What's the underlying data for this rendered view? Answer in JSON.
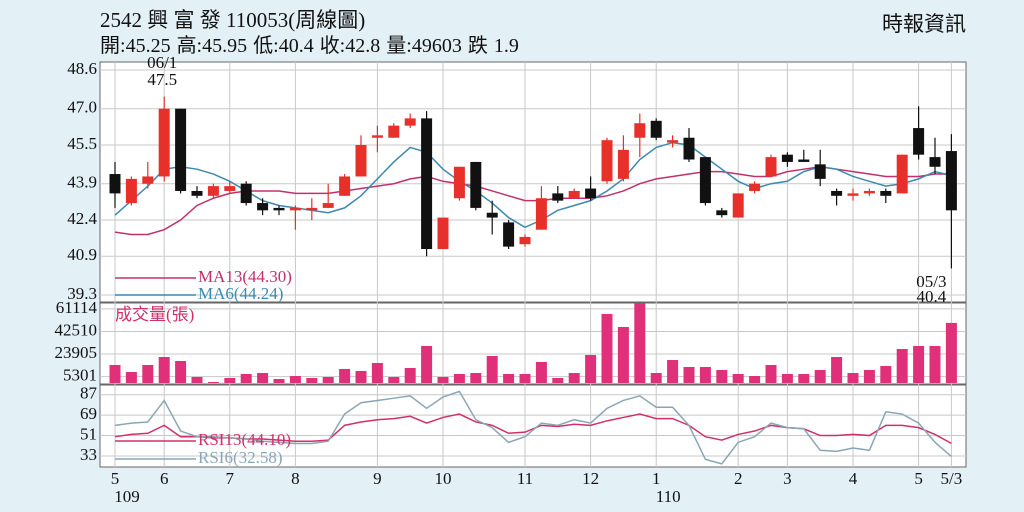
{
  "header": {
    "title": "2542  興 富 發 110053(周線圖)",
    "source": "時報資訊",
    "summary": [
      {
        "label": "開:",
        "value": 45.25
      },
      {
        "label": "高:",
        "value": 45.95
      },
      {
        "label": "低:",
        "value": 40.4
      },
      {
        "label": "收:",
        "value": 42.8
      },
      {
        "label": "量:",
        "value": 49603
      },
      {
        "label": "跌",
        "value": 1.9
      }
    ]
  },
  "year_labels": [
    "109",
    "110"
  ],
  "chart_data": [
    {
      "type": "candlestick",
      "up_color": "#e8302a",
      "down_color": "#111111",
      "categories": [
        "5",
        null,
        null,
        "6",
        null,
        null,
        null,
        "7",
        null,
        null,
        null,
        "8",
        null,
        null,
        null,
        null,
        "9",
        null,
        null,
        null,
        "10",
        null,
        null,
        null,
        null,
        "11",
        null,
        null,
        null,
        "12",
        null,
        null,
        null,
        "1",
        null,
        null,
        null,
        null,
        "2",
        null,
        null,
        "3",
        null,
        null,
        null,
        "4",
        null,
        null,
        null,
        "5",
        null,
        "5/3"
      ],
      "open": [
        44.3,
        43.1,
        43.9,
        44.2,
        47.0,
        43.6,
        43.4,
        43.6,
        43.9,
        43.1,
        42.9,
        42.8,
        42.8,
        42.9,
        43.4,
        44.2,
        45.8,
        45.8,
        46.3,
        46.6,
        41.2,
        43.3,
        44.8,
        42.7,
        42.3,
        41.4,
        42.0,
        43.5,
        43.3,
        43.7,
        44.0,
        44.1,
        45.8,
        46.5,
        45.6,
        45.8,
        45.0,
        42.8,
        42.5,
        43.6,
        44.2,
        45.1,
        44.9,
        44.7,
        43.6,
        43.4,
        43.5,
        43.6,
        43.5,
        46.2,
        45.0,
        45.25
      ],
      "high": [
        44.8,
        44.2,
        44.8,
        47.5,
        47.0,
        43.8,
        43.9,
        44.0,
        44.0,
        43.3,
        43.0,
        43.0,
        43.3,
        43.9,
        44.3,
        45.9,
        46.3,
        46.4,
        46.8,
        46.9,
        42.5,
        44.6,
        44.8,
        43.2,
        42.4,
        41.8,
        43.8,
        43.8,
        43.7,
        44.2,
        45.8,
        45.9,
        46.8,
        46.6,
        45.9,
        46.2,
        45.0,
        42.9,
        43.5,
        44.0,
        45.1,
        45.2,
        45.3,
        45.3,
        43.7,
        43.7,
        43.7,
        43.7,
        45.1,
        47.1,
        45.8,
        45.95
      ],
      "low": [
        42.9,
        43.0,
        43.7,
        44.0,
        43.5,
        43.3,
        43.3,
        43.5,
        43.0,
        42.6,
        42.6,
        42.0,
        42.4,
        42.9,
        43.4,
        44.2,
        45.2,
        45.8,
        46.2,
        40.9,
        41.2,
        43.2,
        42.8,
        41.8,
        41.2,
        41.3,
        42.0,
        43.1,
        43.3,
        43.2,
        43.9,
        44.0,
        45.0,
        45.7,
        45.4,
        44.8,
        43.0,
        42.5,
        42.5,
        43.5,
        44.2,
        44.6,
        44.8,
        43.8,
        43.0,
        43.2,
        43.4,
        43.1,
        43.5,
        44.9,
        44.3,
        40.4
      ],
      "close": [
        43.5,
        44.1,
        44.2,
        47.0,
        43.6,
        43.4,
        43.8,
        43.8,
        43.1,
        42.8,
        42.8,
        42.9,
        42.9,
        43.1,
        44.2,
        45.5,
        45.9,
        46.3,
        46.6,
        41.2,
        42.5,
        44.6,
        42.9,
        42.5,
        41.3,
        41.7,
        43.3,
        43.2,
        43.6,
        43.3,
        45.7,
        45.3,
        46.4,
        45.8,
        45.7,
        44.9,
        43.1,
        42.6,
        43.5,
        43.9,
        45.0,
        44.8,
        44.8,
        44.1,
        43.4,
        43.5,
        43.6,
        43.4,
        45.1,
        45.1,
        44.6,
        42.8
      ],
      "series": [
        {
          "name": "MA13(44.30)",
          "color": "#c2306c",
          "values": [
            41.9,
            41.8,
            41.8,
            42.0,
            42.4,
            43.0,
            43.3,
            43.5,
            43.6,
            43.6,
            43.6,
            43.5,
            43.5,
            43.5,
            43.6,
            43.7,
            43.8,
            43.9,
            44.1,
            44.2,
            44.0,
            43.9,
            43.8,
            43.6,
            43.4,
            43.2,
            43.2,
            43.3,
            43.3,
            43.3,
            43.4,
            43.6,
            43.9,
            44.1,
            44.2,
            44.3,
            44.4,
            44.4,
            44.3,
            44.2,
            44.2,
            44.4,
            44.5,
            44.6,
            44.5,
            44.4,
            44.3,
            44.2,
            44.2,
            44.2,
            44.3,
            44.3
          ]
        },
        {
          "name": "MA6(44.24)",
          "color": "#3a8ab0",
          "values": [
            42.6,
            43.2,
            43.8,
            44.5,
            44.6,
            44.5,
            44.3,
            44.0,
            43.6,
            43.2,
            43.0,
            42.9,
            42.8,
            42.7,
            42.9,
            43.4,
            44.1,
            44.8,
            45.4,
            45.2,
            44.5,
            44.0,
            43.6,
            43.1,
            42.5,
            42.1,
            42.4,
            42.8,
            43.0,
            43.2,
            43.6,
            44.1,
            44.9,
            45.4,
            45.6,
            45.5,
            45.0,
            44.5,
            44.0,
            43.7,
            43.9,
            44.0,
            44.4,
            44.6,
            44.5,
            44.2,
            44.0,
            43.8,
            43.9,
            44.1,
            44.4,
            44.24
          ]
        }
      ],
      "high_label": {
        "date": "06/1",
        "value": 47.5
      },
      "low_label": {
        "date": "05/3",
        "value": 40.4
      },
      "ylim": [
        39.3,
        48.6
      ],
      "yticks": [
        48.6,
        {
          "value": 47,
          "label": "47.0"
        },
        45.5,
        43.9,
        42.4,
        40.9,
        39.3
      ],
      "grid": true
    },
    {
      "type": "bar",
      "title": "成交量(張)",
      "color": "#e0307a",
      "values": [
        14850,
        9075,
        14850,
        21450,
        18150,
        4950,
        825,
        4125,
        7425,
        8250,
        3300,
        5775,
        4125,
        4950,
        11550,
        9900,
        16500,
        4950,
        12375,
        30525,
        4950,
        7425,
        8250,
        22275,
        7425,
        7425,
        17325,
        4125,
        8250,
        23100,
        56925,
        46200,
        66000,
        8250,
        18975,
        13200,
        13200,
        10725,
        7425,
        5775,
        14850,
        7425,
        7425,
        10725,
        21450,
        8250,
        10725,
        14025,
        28050,
        30525,
        30525,
        49603
      ],
      "ylim": [
        0,
        66000
      ],
      "yticks": [
        61114,
        42510,
        23905,
        5301
      ],
      "grid": true
    },
    {
      "type": "line",
      "series": [
        {
          "name": "RSI13(44.10)",
          "color": "#d0306a",
          "values": [
            50,
            52,
            53,
            60,
            50,
            50,
            49,
            49,
            48,
            48,
            47,
            46,
            46,
            47,
            60,
            63,
            65,
            66,
            68,
            62,
            67,
            70,
            63,
            60,
            53,
            54,
            60,
            59,
            61,
            60,
            64,
            67,
            70,
            66,
            66,
            60,
            50,
            47,
            52,
            55,
            60,
            58,
            57,
            51,
            51,
            52,
            51,
            60,
            60,
            58,
            52,
            44.1
          ]
        },
        {
          "name": "RSI6(32.58)",
          "color": "#8aa6b6",
          "values": [
            60,
            62,
            63,
            82,
            55,
            50,
            50,
            49,
            48,
            46,
            45,
            44,
            44,
            46,
            70,
            80,
            82,
            84,
            86,
            75,
            85,
            90,
            65,
            58,
            45,
            50,
            62,
            60,
            65,
            62,
            75,
            82,
            86,
            76,
            76,
            60,
            30,
            26,
            45,
            50,
            62,
            58,
            57,
            38,
            37,
            40,
            38,
            72,
            70,
            62,
            45,
            32.58
          ]
        }
      ],
      "ylim": [
        25,
        93
      ],
      "yticks": [
        87,
        69,
        51,
        33
      ],
      "grid": true
    }
  ]
}
